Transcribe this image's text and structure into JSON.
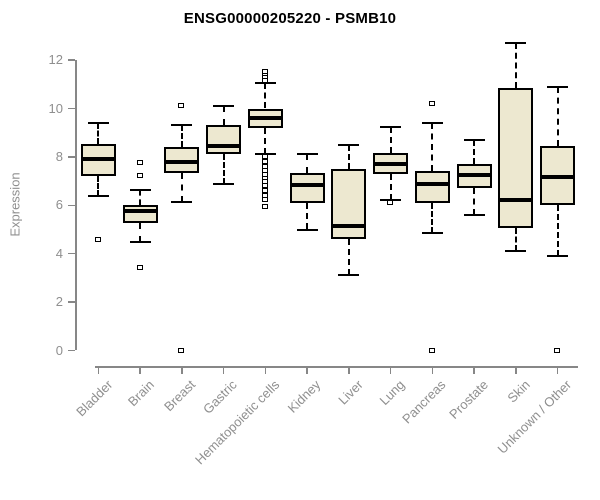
{
  "title": "ENSG00000205220 - PSMB10",
  "colors": {
    "box_fill": "#EDE8D0",
    "box_border": "#000000",
    "axis_gray": "#878787",
    "label_gray": "#8f8f8f",
    "title_ink": "#000000",
    "background": "#ffffff"
  },
  "chart_data": {
    "type": "box",
    "title": "ENSG00000205220 - PSMB10",
    "xlabel": "",
    "ylabel": "Expression",
    "ylim": [
      0,
      12.75
    ],
    "y_ticks": [
      0,
      2,
      4,
      6,
      8,
      10,
      12
    ],
    "grid": false,
    "legend": "none",
    "categories": [
      "Bladder",
      "Brain",
      "Breast",
      "Gastric",
      "Hematopoietic cells",
      "Kidney",
      "Liver",
      "Lung",
      "Pancreas",
      "Prostate",
      "Skin",
      "Unknown / Other"
    ],
    "boxes": [
      {
        "category": "Bladder",
        "whisker_low": 6.4,
        "q1": 7.2,
        "median": 7.9,
        "q3": 8.55,
        "whisker_high": 9.4,
        "outliers": [
          4.55
        ]
      },
      {
        "category": "Brain",
        "whisker_low": 4.5,
        "q1": 5.25,
        "median": 5.75,
        "q3": 6.0,
        "whisker_high": 6.65,
        "outliers": [
          7.75,
          7.2,
          3.4
        ]
      },
      {
        "category": "Breast",
        "whisker_low": 6.15,
        "q1": 7.35,
        "median": 7.8,
        "q3": 8.4,
        "whisker_high": 9.3,
        "outliers": [
          10.1,
          0
        ]
      },
      {
        "category": "Gastric",
        "whisker_low": 6.9,
        "q1": 8.1,
        "median": 8.45,
        "q3": 9.3,
        "whisker_high": 10.1,
        "outliers": []
      },
      {
        "category": "Hematopoietic cells",
        "whisker_low": 8.1,
        "q1": 9.18,
        "median": 9.6,
        "q3": 10.0,
        "whisker_high": 11.05,
        "outliers": [
          11.5,
          11.35,
          11.25,
          11.15,
          8.0,
          7.8,
          7.6,
          7.4,
          7.25,
          7.1,
          6.95,
          6.8,
          6.6,
          6.4,
          6.2,
          5.95
        ]
      },
      {
        "category": "Kidney",
        "whisker_low": 5.0,
        "q1": 6.1,
        "median": 6.85,
        "q3": 7.35,
        "whisker_high": 8.1,
        "outliers": []
      },
      {
        "category": "Liver",
        "whisker_low": 3.1,
        "q1": 4.6,
        "median": 5.15,
        "q3": 7.5,
        "whisker_high": 8.5,
        "outliers": []
      },
      {
        "category": "Lung",
        "whisker_low": 6.2,
        "q1": 7.3,
        "median": 7.7,
        "q3": 8.15,
        "whisker_high": 9.25,
        "outliers": [
          6.1
        ]
      },
      {
        "category": "Pancreas",
        "whisker_low": 4.85,
        "q1": 6.08,
        "median": 6.9,
        "q3": 7.4,
        "whisker_high": 9.4,
        "outliers": [
          10.2,
          0
        ]
      },
      {
        "category": "Prostate",
        "whisker_low": 5.6,
        "q1": 6.7,
        "median": 7.25,
        "q3": 7.7,
        "whisker_high": 8.7,
        "outliers": []
      },
      {
        "category": "Skin",
        "whisker_low": 4.1,
        "q1": 5.05,
        "median": 6.2,
        "q3": 10.85,
        "whisker_high": 12.7,
        "outliers": []
      },
      {
        "category": "Unknown / Other",
        "whisker_low": 3.9,
        "q1": 6.0,
        "median": 7.15,
        "q3": 8.45,
        "whisker_high": 10.9,
        "outliers": [
          0
        ]
      }
    ]
  }
}
